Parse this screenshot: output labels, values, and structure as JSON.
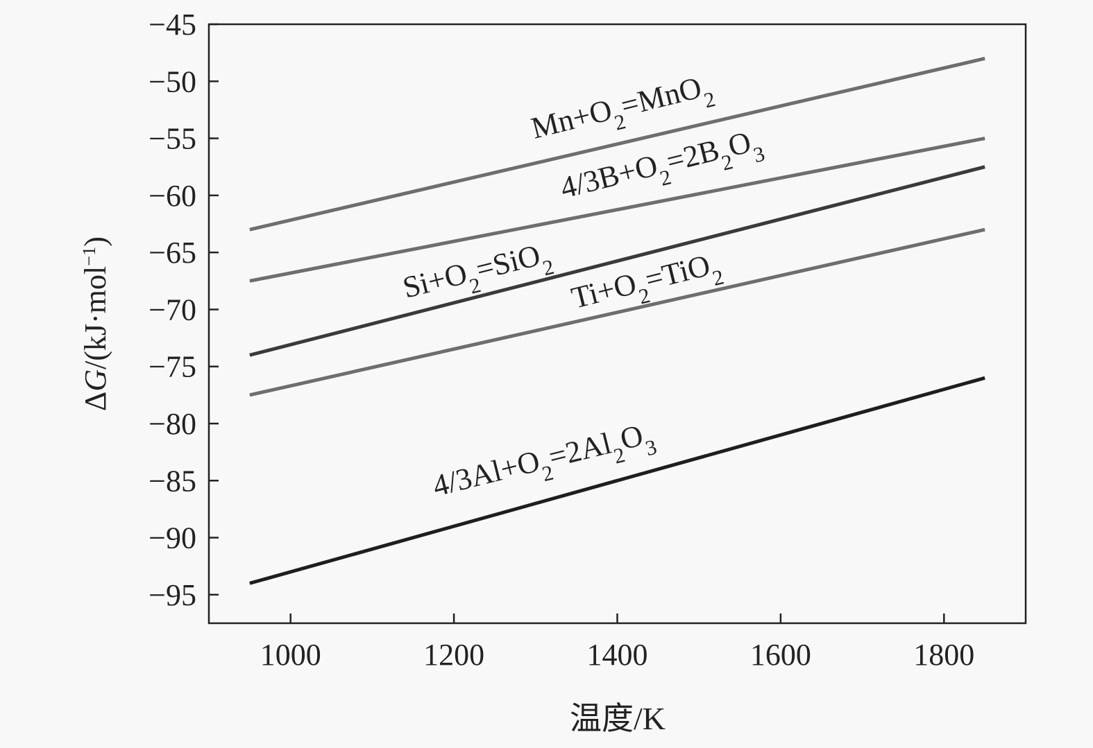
{
  "chart_data": {
    "type": "line",
    "xlabel": "温度/K",
    "ylabel_parts": [
      {
        "t": "Δ"
      },
      {
        "t": "G",
        "italic": true
      },
      {
        "t": "/(kJ·mol"
      },
      {
        "t": "−1",
        "sup": true
      },
      {
        "t": ")"
      }
    ],
    "xlim": [
      900,
      1900
    ],
    "ylim": [
      -97.5,
      -45
    ],
    "xticks": [
      1000,
      1200,
      1400,
      1600,
      1800
    ],
    "yticks": [
      -45,
      -50,
      -55,
      -60,
      -65,
      -70,
      -75,
      -80,
      -85,
      -90,
      -95
    ],
    "grid": false,
    "series": [
      {
        "label_parts": [
          {
            "t": "Mn+O"
          },
          {
            "t": "2",
            "sub": true
          },
          {
            "t": "=MnO"
          },
          {
            "t": "2",
            "sub": true
          }
        ],
        "x": [
          950,
          1850
        ],
        "y": [
          -63,
          -48
        ],
        "color": "#6e6e6e"
      },
      {
        "label_parts": [
          {
            "t": "4/3B+O"
          },
          {
            "t": "2",
            "sub": true
          },
          {
            "t": "=2B"
          },
          {
            "t": "2",
            "sub": true
          },
          {
            "t": "O"
          },
          {
            "t": "3",
            "sub": true
          }
        ],
        "x": [
          950,
          1850
        ],
        "y": [
          -67.5,
          -55
        ],
        "color": "#6e6e6e"
      },
      {
        "label_parts": [
          {
            "t": "Si+O"
          },
          {
            "t": "2",
            "sub": true
          },
          {
            "t": "=SiO"
          },
          {
            "t": "2",
            "sub": true
          }
        ],
        "x": [
          950,
          1850
        ],
        "y": [
          -74,
          -57.5
        ],
        "color": "#3a3a3a"
      },
      {
        "label_parts": [
          {
            "t": "Ti+O"
          },
          {
            "t": "2",
            "sub": true
          },
          {
            "t": "=TiO"
          },
          {
            "t": "2",
            "sub": true
          }
        ],
        "x": [
          950,
          1850
        ],
        "y": [
          -77.5,
          -63
        ],
        "color": "#6e6e6e"
      },
      {
        "label_parts": [
          {
            "t": "4/3Al+O"
          },
          {
            "t": "2",
            "sub": true
          },
          {
            "t": "=2Al"
          },
          {
            "t": "2",
            "sub": true
          },
          {
            "t": "O"
          },
          {
            "t": "3",
            "sub": true
          }
        ],
        "x": [
          950,
          1850
        ],
        "y": [
          -94,
          -76
        ],
        "color": "#1e1e1e"
      }
    ]
  }
}
